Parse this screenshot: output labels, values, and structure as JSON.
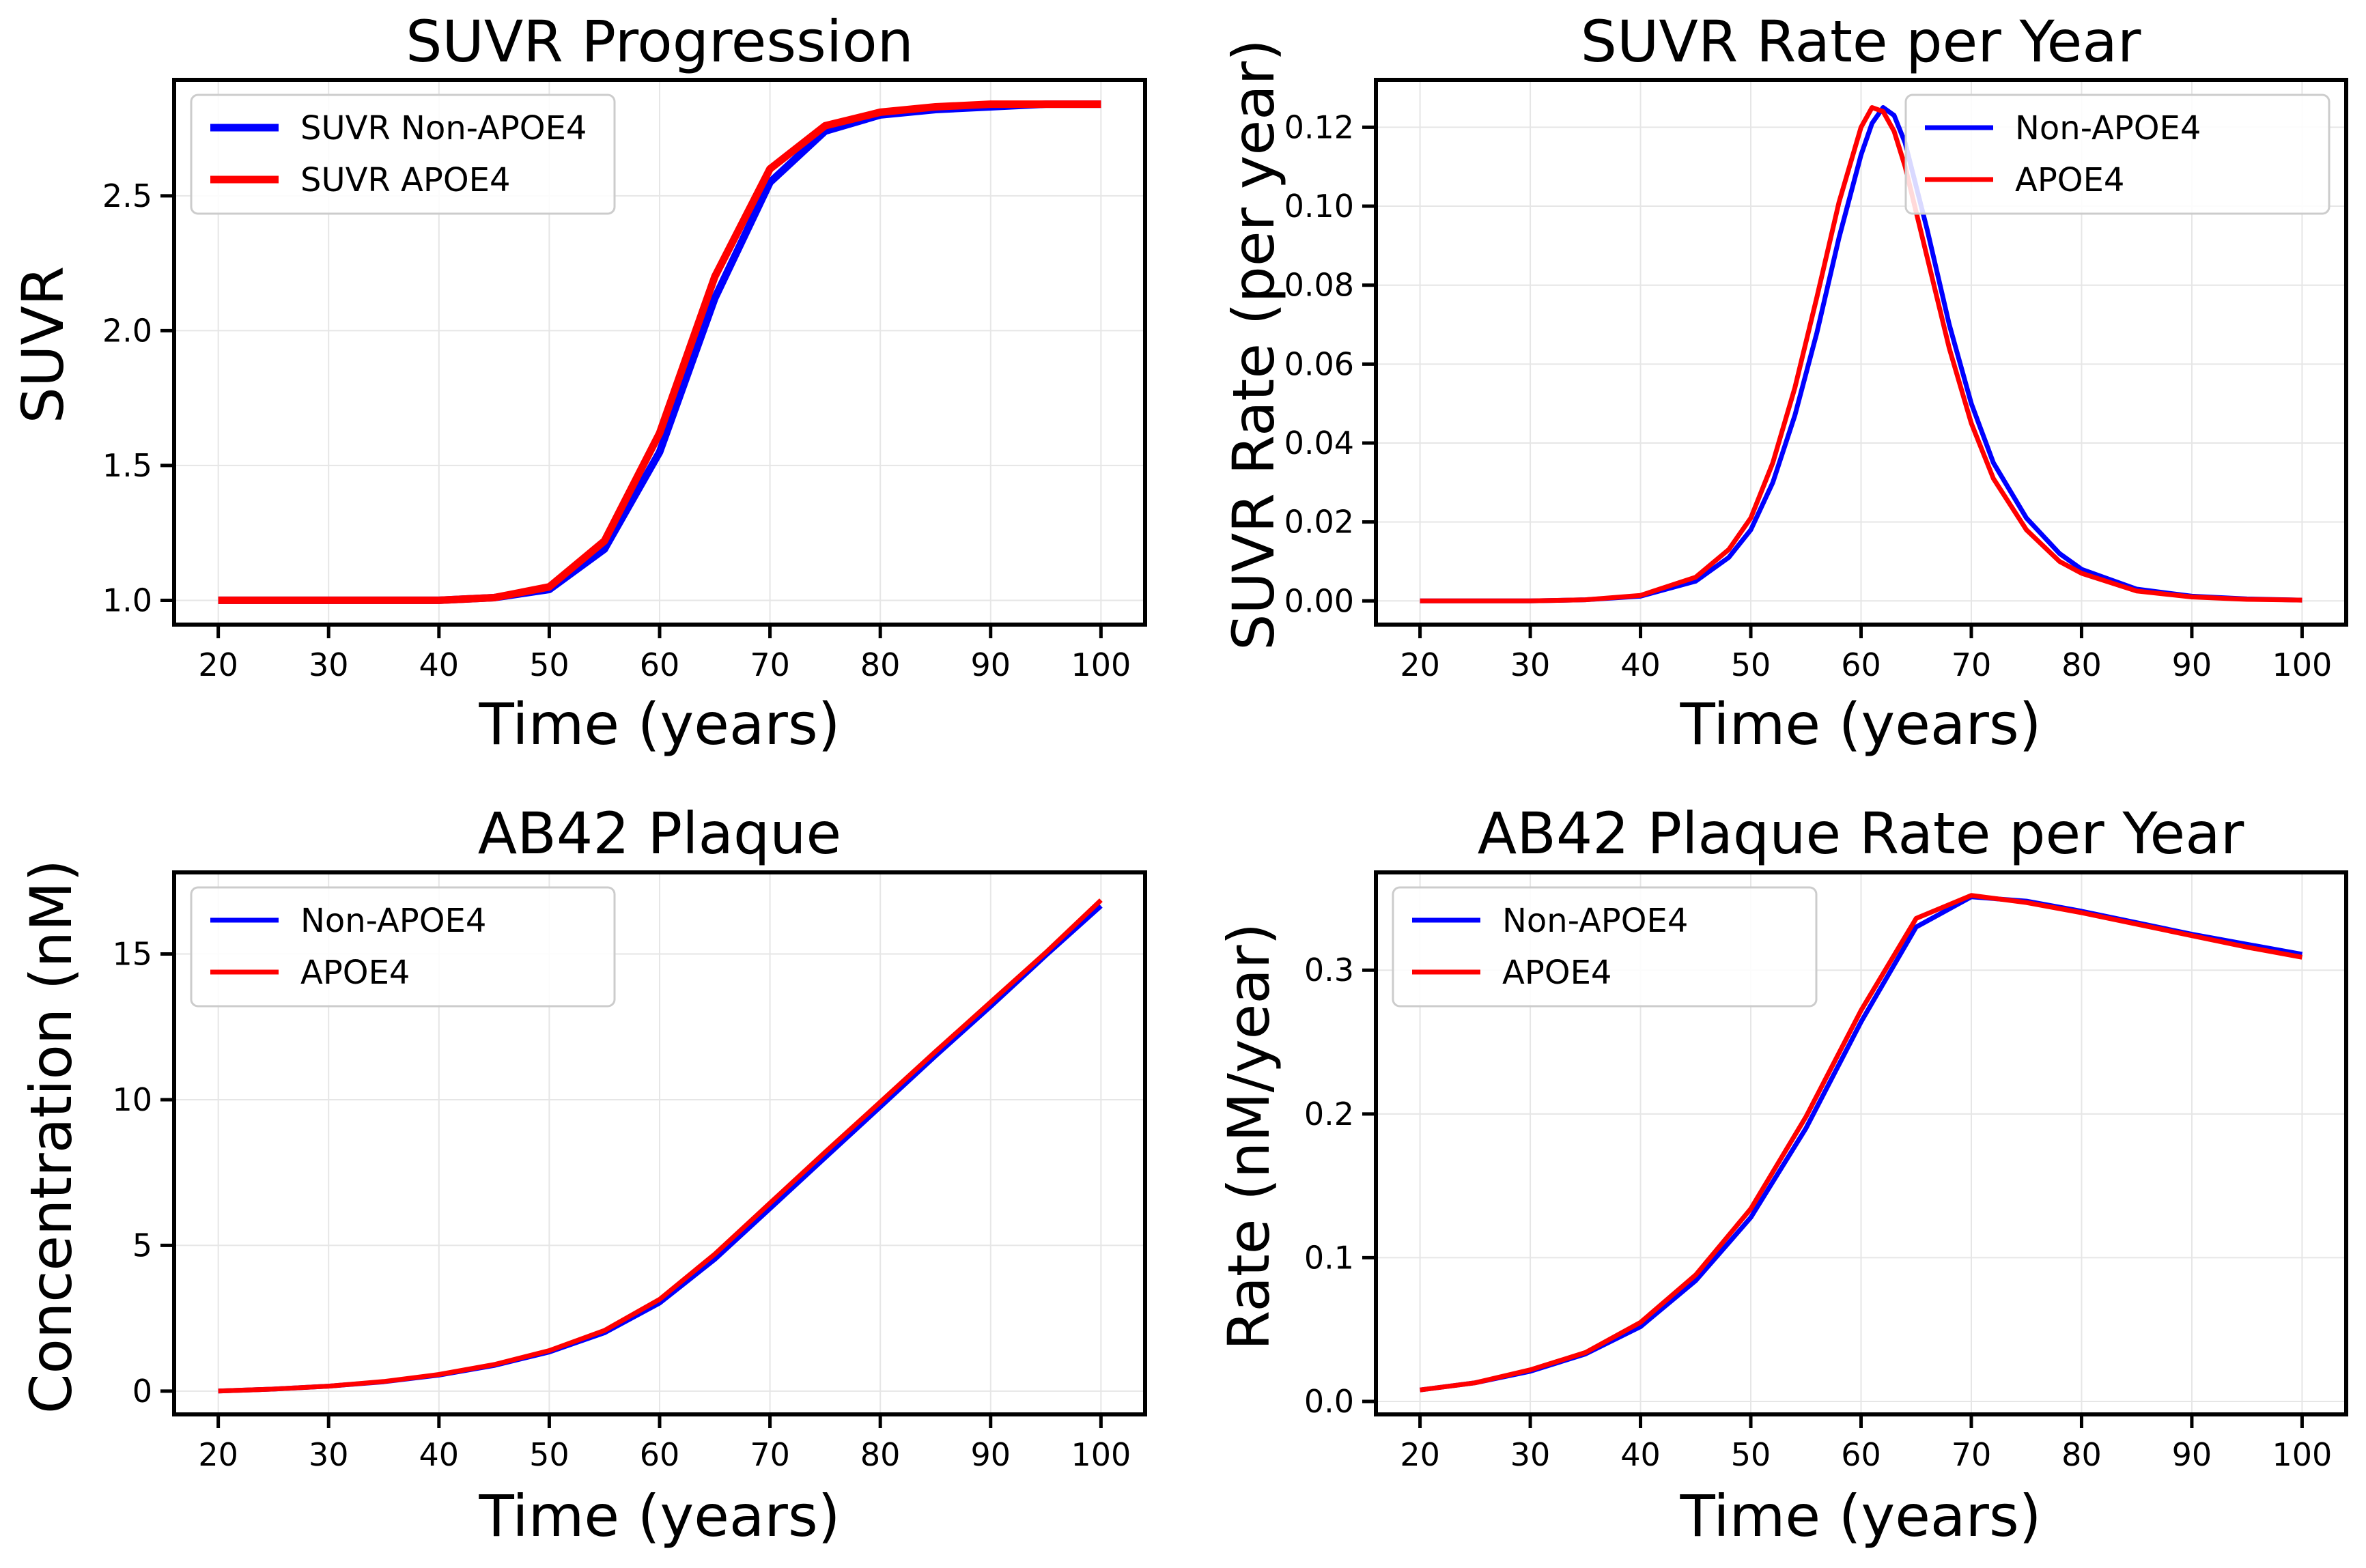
{
  "colors": {
    "non_apoe4": "#0000ff",
    "apoe4": "#ff0000",
    "grid": "#e6e6e6",
    "axes": "#000000"
  },
  "chart_data": [
    {
      "type": "line",
      "title": "SUVR Progression",
      "xlabel": "Time (years)",
      "ylabel": "SUVR",
      "xlim": [
        16,
        104
      ],
      "ylim": [
        0.91,
        2.93
      ],
      "xticks": [
        20,
        30,
        40,
        50,
        60,
        70,
        80,
        90,
        100
      ],
      "xtick_labels": [
        "20",
        "30",
        "40",
        "50",
        "60",
        "70",
        "80",
        "90",
        "100"
      ],
      "yticks": [
        1.0,
        1.5,
        2.0,
        2.5
      ],
      "ytick_labels": [
        "1.0",
        "1.5",
        "2.0",
        "2.5"
      ],
      "grid": true,
      "legend_position": "top-left",
      "line_width": "thick",
      "x": [
        20,
        30,
        40,
        45,
        50,
        55,
        60,
        65,
        70,
        75,
        80,
        85,
        90,
        95,
        100
      ],
      "series": [
        {
          "name": "SUVR Non-APOE4",
          "color": "#0000ff",
          "values": [
            1.0,
            1.0,
            1.0,
            1.01,
            1.04,
            1.19,
            1.55,
            2.12,
            2.55,
            2.74,
            2.8,
            2.82,
            2.83,
            2.84,
            2.84
          ]
        },
        {
          "name": "SUVR APOE4",
          "color": "#ff0000",
          "values": [
            1.0,
            1.0,
            1.0,
            1.01,
            1.05,
            1.22,
            1.62,
            2.2,
            2.6,
            2.76,
            2.81,
            2.83,
            2.84,
            2.84,
            2.84
          ]
        }
      ]
    },
    {
      "type": "line",
      "title": "SUVR Rate per Year",
      "xlabel": "Time (years)",
      "ylabel": "SUVR Rate (per year)",
      "xlim": [
        16,
        104
      ],
      "ylim": [
        -0.006,
        0.132
      ],
      "xticks": [
        20,
        30,
        40,
        50,
        60,
        70,
        80,
        90,
        100
      ],
      "xtick_labels": [
        "20",
        "30",
        "40",
        "50",
        "60",
        "70",
        "80",
        "90",
        "100"
      ],
      "yticks": [
        0.0,
        0.02,
        0.04,
        0.06,
        0.08,
        0.1,
        0.12
      ],
      "ytick_labels": [
        "0.00",
        "0.02",
        "0.04",
        "0.06",
        "0.08",
        "0.10",
        "0.12"
      ],
      "grid": true,
      "legend_position": "top-right",
      "line_width": "normal",
      "x": [
        20,
        30,
        35,
        40,
        45,
        48,
        50,
        52,
        54,
        56,
        58,
        60,
        61,
        62,
        63,
        64,
        66,
        68,
        70,
        72,
        75,
        78,
        80,
        85,
        90,
        95,
        100
      ],
      "series": [
        {
          "name": "Non-APOE4",
          "color": "#0000ff",
          "values": [
            0.0,
            0.0,
            0.0003,
            0.0012,
            0.005,
            0.011,
            0.018,
            0.03,
            0.047,
            0.068,
            0.092,
            0.113,
            0.121,
            0.125,
            0.123,
            0.116,
            0.094,
            0.07,
            0.05,
            0.035,
            0.021,
            0.012,
            0.008,
            0.003,
            0.0012,
            0.0005,
            0.0002
          ]
        },
        {
          "name": "APOE4",
          "color": "#ff0000",
          "values": [
            0.0,
            0.0,
            0.0003,
            0.0014,
            0.006,
            0.013,
            0.021,
            0.035,
            0.054,
            0.077,
            0.101,
            0.12,
            0.125,
            0.124,
            0.119,
            0.11,
            0.087,
            0.064,
            0.045,
            0.031,
            0.018,
            0.01,
            0.007,
            0.0025,
            0.001,
            0.0004,
            0.0002
          ]
        }
      ]
    },
    {
      "type": "line",
      "title": "AB42 Plaque",
      "xlabel": "Time (years)",
      "ylabel": "Concentration (nM)",
      "xlim": [
        16,
        104
      ],
      "ylim": [
        -0.8,
        17.8
      ],
      "xticks": [
        20,
        30,
        40,
        50,
        60,
        70,
        80,
        90,
        100
      ],
      "xtick_labels": [
        "20",
        "30",
        "40",
        "50",
        "60",
        "70",
        "80",
        "90",
        "100"
      ],
      "yticks": [
        0,
        5,
        10,
        15
      ],
      "ytick_labels": [
        "0",
        "5",
        "10",
        "15"
      ],
      "grid": true,
      "legend_position": "top-left",
      "line_width": "normal",
      "x": [
        20,
        25,
        30,
        35,
        40,
        45,
        50,
        55,
        60,
        65,
        70,
        75,
        80,
        85,
        90,
        95,
        100
      ],
      "series": [
        {
          "name": "Non-APOE4",
          "color": "#0000ff",
          "values": [
            0.0,
            0.07,
            0.17,
            0.32,
            0.55,
            0.88,
            1.34,
            2.0,
            3.02,
            4.52,
            6.26,
            8.01,
            9.75,
            11.5,
            13.2,
            14.95,
            16.65
          ]
        },
        {
          "name": "APOE4",
          "color": "#ff0000",
          "values": [
            0.0,
            0.07,
            0.17,
            0.33,
            0.57,
            0.91,
            1.39,
            2.08,
            3.15,
            4.7,
            6.45,
            8.2,
            9.92,
            11.65,
            13.35,
            15.05,
            16.85
          ]
        }
      ]
    },
    {
      "type": "line",
      "title": "AB42 Plaque Rate per Year",
      "xlabel": "Time (years)",
      "ylabel": "Rate (nM/year)",
      "xlim": [
        16,
        104
      ],
      "ylim": [
        -0.009,
        0.368
      ],
      "xticks": [
        20,
        30,
        40,
        50,
        60,
        70,
        80,
        90,
        100
      ],
      "xtick_labels": [
        "20",
        "30",
        "40",
        "50",
        "60",
        "70",
        "80",
        "90",
        "100"
      ],
      "yticks": [
        0.0,
        0.1,
        0.2,
        0.3
      ],
      "ytick_labels": [
        "0.0",
        "0.1",
        "0.2",
        "0.3"
      ],
      "grid": true,
      "legend_position": "top-left",
      "line_width": "normal",
      "x": [
        20,
        25,
        30,
        35,
        40,
        45,
        50,
        55,
        60,
        65,
        70,
        75,
        80,
        85,
        90,
        95,
        100
      ],
      "series": [
        {
          "name": "Non-APOE4",
          "color": "#0000ff",
          "values": [
            0.008,
            0.013,
            0.021,
            0.033,
            0.052,
            0.084,
            0.128,
            0.19,
            0.264,
            0.33,
            0.351,
            0.348,
            0.341,
            0.333,
            0.325,
            0.318,
            0.311
          ]
        },
        {
          "name": "APOE4",
          "color": "#ff0000",
          "values": [
            0.008,
            0.013,
            0.022,
            0.034,
            0.055,
            0.088,
            0.134,
            0.198,
            0.272,
            0.336,
            0.352,
            0.347,
            0.34,
            0.332,
            0.324,
            0.316,
            0.309
          ]
        }
      ]
    }
  ]
}
